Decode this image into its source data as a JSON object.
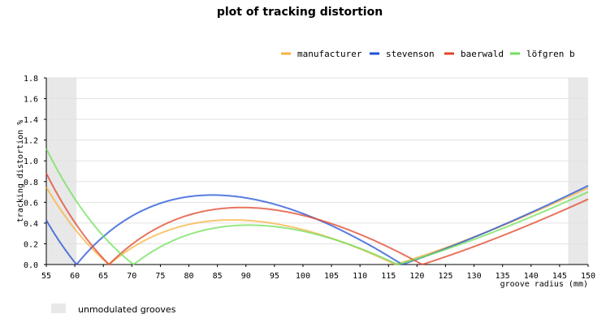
{
  "chart_data": {
    "type": "line",
    "title": "plot of tracking distortion",
    "xlabel": "groove radius (mm)",
    "ylabel": "tracking distortion %",
    "xlim": [
      55,
      150
    ],
    "ylim": [
      0,
      1.8
    ],
    "x_ticks": [
      55,
      60,
      65,
      70,
      75,
      80,
      85,
      90,
      95,
      100,
      105,
      110,
      115,
      120,
      125,
      130,
      135,
      140,
      145,
      150
    ],
    "y_ticks": [
      "0.0",
      "0.2",
      "0.4",
      "0.6",
      "0.8",
      "1.0",
      "1.2",
      "1.4",
      "1.6",
      "1.8"
    ],
    "grid": "horizontal",
    "legend_position": "top-right",
    "shaded_regions": [
      [
        55,
        60.3
      ],
      [
        146.5,
        150
      ]
    ],
    "shaded_note": "unmodulated grooves",
    "series": [
      {
        "name": "manufacturer",
        "color": "#f5b342",
        "null1": 66.0,
        "null2": 116.2,
        "peak": 0.43,
        "end": 0.74
      },
      {
        "name": "stevenson",
        "color": "#1f4fd6",
        "null1": 60.3,
        "null2": 117.4,
        "peak": 0.67,
        "end": 0.76
      },
      {
        "name": "baerwald",
        "color": "#e0452a",
        "null1": 66.0,
        "null2": 120.9,
        "peak": 0.55,
        "end": 0.63
      },
      {
        "name": "löfgren b",
        "color": "#6fe05a",
        "null1": 70.3,
        "null2": 116.6,
        "peak": 0.38,
        "end": 0.7
      }
    ]
  }
}
